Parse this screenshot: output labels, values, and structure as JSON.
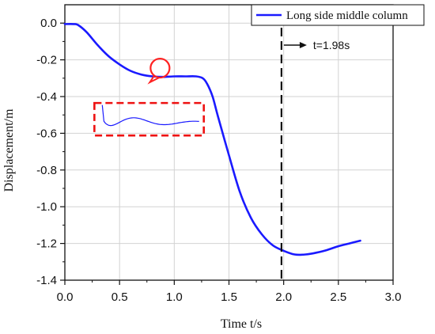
{
  "chart_data": {
    "type": "line",
    "title": "",
    "xlabel": "Time t/s",
    "ylabel": "Displacement/m",
    "xlim": [
      0.0,
      3.0
    ],
    "ylim": [
      -1.4,
      0.1
    ],
    "xticks": [
      "0.0",
      "0.5",
      "1.0",
      "1.5",
      "2.0",
      "2.5",
      "3.0"
    ],
    "yticks": [
      "0.0",
      "-0.2",
      "-0.4",
      "-0.6",
      "-0.8",
      "-1.0",
      "-1.2",
      "-1.4"
    ],
    "grid": true,
    "legend_position": "top-right",
    "series": [
      {
        "name": "Long side middle column",
        "color": "#1a1aff",
        "x": [
          0.0,
          0.08,
          0.12,
          0.2,
          0.3,
          0.4,
          0.5,
          0.6,
          0.7,
          0.8,
          0.9,
          1.0,
          1.1,
          1.2,
          1.26,
          1.3,
          1.35,
          1.4,
          1.5,
          1.6,
          1.7,
          1.8,
          1.9,
          2.0,
          2.1,
          2.2,
          2.3,
          2.4,
          2.5,
          2.6,
          2.7
        ],
        "y": [
          -0.005,
          -0.005,
          -0.01,
          -0.05,
          -0.12,
          -0.18,
          -0.225,
          -0.26,
          -0.28,
          -0.29,
          -0.293,
          -0.29,
          -0.29,
          -0.29,
          -0.3,
          -0.33,
          -0.4,
          -0.51,
          -0.72,
          -0.92,
          -1.06,
          -1.15,
          -1.21,
          -1.24,
          -1.26,
          -1.26,
          -1.25,
          -1.235,
          -1.215,
          -1.2,
          -1.185
        ]
      }
    ],
    "reference_line": {
      "x": 1.98,
      "label": "t=1.98s"
    },
    "annotation_zoom": true
  }
}
